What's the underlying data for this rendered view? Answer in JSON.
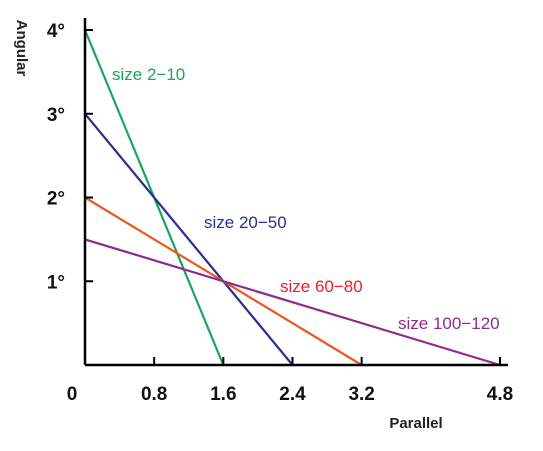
{
  "chart_data": {
    "type": "line",
    "xlabel": "Parallel",
    "ylabel": "Angular",
    "xlim": [
      0,
      4.8
    ],
    "ylim": [
      0,
      4
    ],
    "x_ticks": [
      "0",
      "0.8",
      "1.6",
      "2.4",
      "3.2",
      "4.8"
    ],
    "y_ticks": [
      "1°",
      "2°",
      "3°",
      "4°"
    ],
    "grid": false,
    "legend": "inline labels",
    "series": [
      {
        "name": "size 2−10",
        "color": "#1aa65a",
        "x": [
          0,
          1.6
        ],
        "y": [
          4,
          0
        ]
      },
      {
        "name": "size 20−50",
        "color": "#2b2f8f",
        "x": [
          0,
          2.4
        ],
        "y": [
          3,
          0
        ]
      },
      {
        "name": "size 60−80",
        "color": "#ea5a1e",
        "label_color": "#e8202a",
        "x": [
          0,
          3.2
        ],
        "y": [
          2,
          0
        ]
      },
      {
        "name": "size 100−120",
        "color": "#8e2a91",
        "x": [
          0,
          4.8
        ],
        "y": [
          1.5,
          0
        ]
      }
    ]
  }
}
